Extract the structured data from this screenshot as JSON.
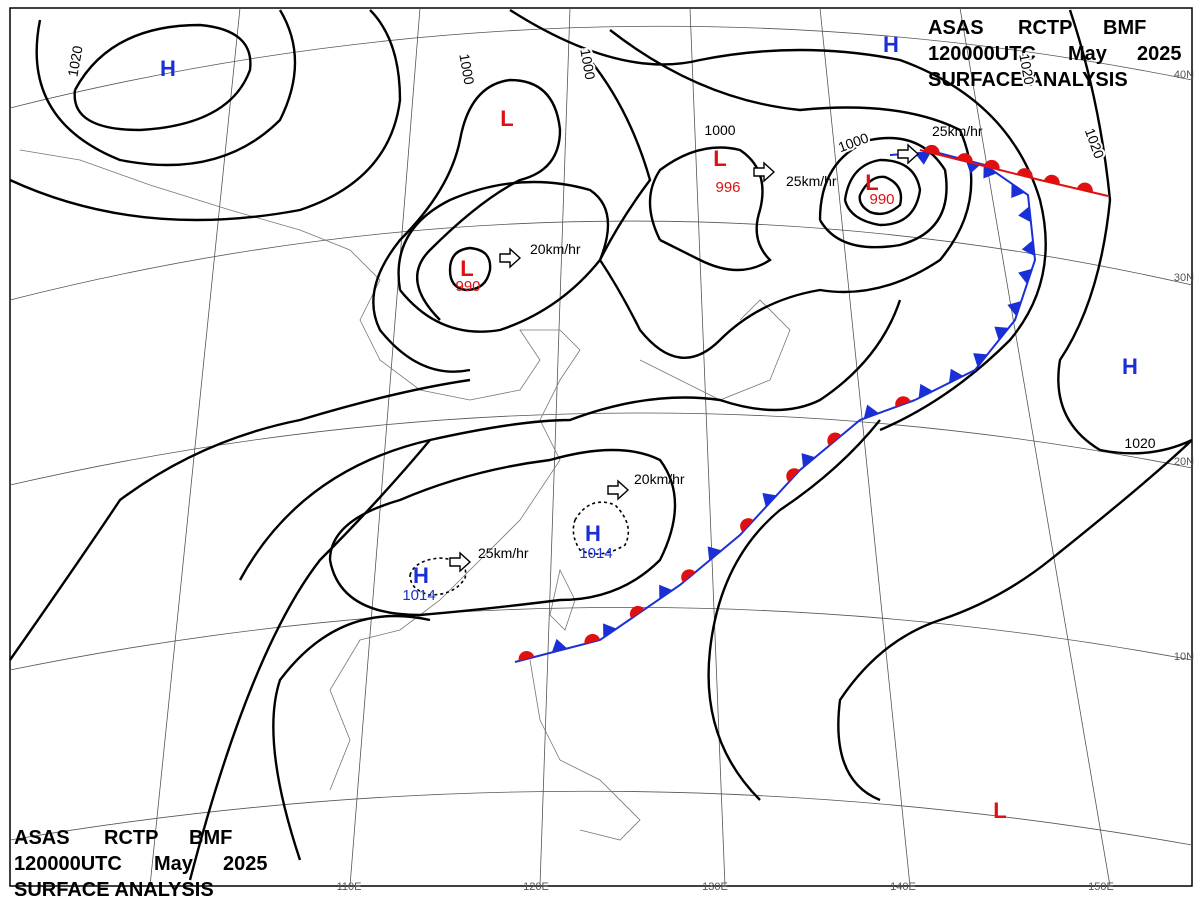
{
  "header": {
    "agency": "ASAS",
    "station": "RCTP",
    "office": "BMF",
    "time": "120000UTC",
    "month": "May",
    "year": "2025",
    "product": "SURFACE ANALYSIS"
  },
  "pressure_centers": [
    {
      "symbol": "H",
      "color": "#1a2fd6"
    },
    {
      "symbol": "L",
      "color": "#e01010"
    },
    {
      "symbol": "L",
      "color": "#e01010",
      "value": "990"
    },
    {
      "symbol": "L",
      "color": "#e01010",
      "value": "996"
    },
    {
      "symbol": "L",
      "color": "#e01010",
      "value": "990"
    },
    {
      "symbol": "H",
      "color": "#1a2fd6"
    },
    {
      "symbol": "H",
      "color": "#1a2fd6"
    },
    {
      "symbol": "H",
      "color": "#1a2fd6",
      "value": "1014"
    },
    {
      "symbol": "H",
      "color": "#1a2fd6",
      "value": "1014"
    },
    {
      "symbol": "L",
      "color": "#e01010"
    }
  ],
  "isobar_labels": [
    "1020",
    "1020",
    "1000",
    "1000",
    "1000",
    "1000",
    "1020",
    "1020"
  ],
  "motion_labels": [
    "20km/hr",
    "25km/hr",
    "25km/hr",
    "25km/hr",
    "20km/hr"
  ],
  "latitude_labels": [
    "40N",
    "30N",
    "20N",
    "10N"
  ],
  "longitude_labels": [
    "110E",
    "120E",
    "130E",
    "140E",
    "150E"
  ]
}
